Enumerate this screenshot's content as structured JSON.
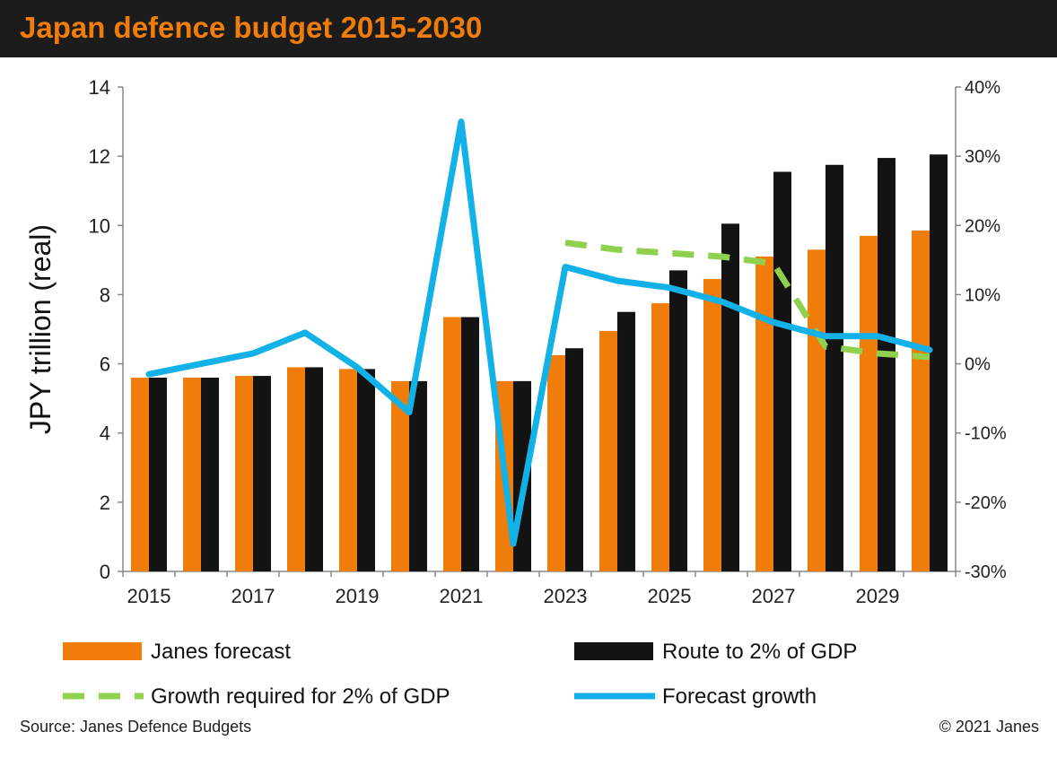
{
  "header": {
    "title": "Japan defence budget 2015-2030"
  },
  "footer": {
    "source": "Source: Janes Defence Budgets",
    "copyright": "© 2021 Janes"
  },
  "colors": {
    "janes": "#f07c0a",
    "route": "#131313",
    "required": "#8fd14f",
    "forecast": "#12b2e8"
  },
  "chart_data": {
    "type": "bar",
    "x": [
      2015,
      2016,
      2017,
      2018,
      2019,
      2020,
      2021,
      2022,
      2023,
      2024,
      2025,
      2026,
      2027,
      2028,
      2029,
      2030
    ],
    "x_tick_labels": [
      "2015",
      "2017",
      "2019",
      "2021",
      "2023",
      "2025",
      "2027",
      "2029"
    ],
    "x_tick_years": [
      2015,
      2017,
      2019,
      2021,
      2023,
      2025,
      2027,
      2029
    ],
    "ylabel": "JPY trillion  (real)",
    "ylim": [
      0,
      14
    ],
    "y_ticks": [
      "0",
      "2",
      "4",
      "6",
      "8",
      "10",
      "12",
      "14"
    ],
    "y2lim": [
      -30,
      40
    ],
    "y2_ticks": [
      "-30%",
      "-20%",
      "-10%",
      "0%",
      "10%",
      "20%",
      "30%",
      "40%"
    ],
    "y2_tick_values": [
      -30,
      -20,
      -10,
      0,
      10,
      20,
      30,
      40
    ],
    "grid": false,
    "legend_position": "bottom",
    "series": [
      {
        "name": "Janes forecast",
        "kind": "bar",
        "axis": "left",
        "values": [
          5.6,
          5.6,
          5.65,
          5.9,
          5.85,
          5.5,
          7.35,
          5.5,
          6.25,
          6.95,
          7.75,
          8.45,
          9.1,
          9.3,
          9.7,
          9.85
        ]
      },
      {
        "name": "Route to 2% of GDP",
        "kind": "bar",
        "axis": "left",
        "values": [
          5.6,
          5.6,
          5.65,
          5.9,
          5.85,
          5.5,
          7.35,
          5.5,
          6.45,
          7.5,
          8.7,
          10.05,
          11.55,
          11.75,
          11.95,
          12.05
        ]
      },
      {
        "name": "Growth required for 2% of GDP",
        "kind": "line",
        "style": "dashed",
        "axis": "right",
        "x": [
          2023,
          2024,
          2025,
          2026,
          2027,
          2028,
          2029,
          2030
        ],
        "values": [
          17.5,
          16.5,
          16,
          15.5,
          14.5,
          2.5,
          1.5,
          1
        ]
      },
      {
        "name": "Forecast growth",
        "kind": "line",
        "style": "solid",
        "axis": "right",
        "x": [
          2015,
          2016,
          2017,
          2018,
          2019,
          2020,
          2021,
          2022,
          2023,
          2024,
          2025,
          2026,
          2027,
          2028,
          2029,
          2030
        ],
        "values": [
          -1.5,
          0,
          1.5,
          4.5,
          -0.5,
          -7,
          35,
          -26,
          14,
          12,
          11,
          9,
          6,
          4,
          4,
          2
        ]
      }
    ]
  }
}
